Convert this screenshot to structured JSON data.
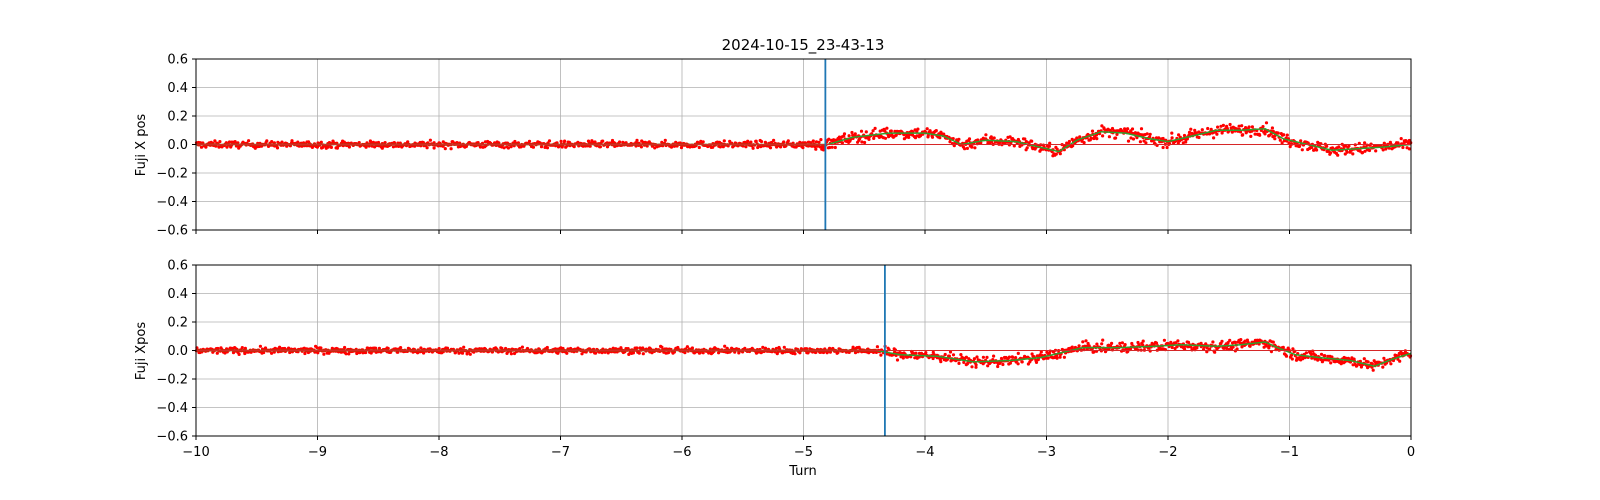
{
  "chart_data": [
    {
      "type": "scatter",
      "title": "2024-10-15_23-43-13",
      "xlabel": "",
      "ylabel": "Fuji X pos",
      "xlim": [
        -10,
        0
      ],
      "ylim": [
        -0.6,
        0.6
      ],
      "xticks": [
        -10,
        -9,
        -8,
        -7,
        -6,
        -5,
        -4,
        -3,
        -2,
        -1,
        0
      ],
      "yticks": [
        -0.6,
        -0.4,
        -0.2,
        0.0,
        0.2,
        0.4,
        0.6
      ],
      "xtick_labels_visible": false,
      "grid": true,
      "vline_x": -4.82,
      "hline_y": 0.0,
      "colors": {
        "points": "#ff0000",
        "smooth": "#2ca02c",
        "vline": "#1f77b4",
        "hline": "#d62728"
      },
      "trend": [
        [
          -10,
          0.0
        ],
        [
          -4.8,
          0.0
        ],
        [
          -4.6,
          0.05
        ],
        [
          -4.3,
          0.08
        ],
        [
          -4.0,
          0.08
        ],
        [
          -3.85,
          0.06
        ],
        [
          -3.7,
          0.0
        ],
        [
          -3.5,
          0.03
        ],
        [
          -3.25,
          0.02
        ],
        [
          -3.05,
          -0.02
        ],
        [
          -2.9,
          -0.05
        ],
        [
          -2.75,
          0.03
        ],
        [
          -2.55,
          0.09
        ],
        [
          -2.35,
          0.08
        ],
        [
          -2.15,
          0.04
        ],
        [
          -2.0,
          0.02
        ],
        [
          -1.8,
          0.06
        ],
        [
          -1.6,
          0.1
        ],
        [
          -1.4,
          0.1
        ],
        [
          -1.2,
          0.11
        ],
        [
          -1.05,
          0.04
        ],
        [
          -0.85,
          0.0
        ],
        [
          -0.65,
          -0.04
        ],
        [
          -0.45,
          -0.03
        ],
        [
          -0.25,
          -0.02
        ],
        [
          0,
          0.0
        ]
      ],
      "noise": 0.022
    },
    {
      "type": "scatter",
      "title": "",
      "xlabel": "Turn",
      "ylabel": "Fuji Xpos",
      "xlim": [
        -10,
        0
      ],
      "ylim": [
        -0.6,
        0.6
      ],
      "xticks": [
        -10,
        -9,
        -8,
        -7,
        -6,
        -5,
        -4,
        -3,
        -2,
        -1,
        0
      ],
      "yticks": [
        -0.6,
        -0.4,
        -0.2,
        0.0,
        0.2,
        0.4,
        0.6
      ],
      "xtick_labels_visible": true,
      "grid": true,
      "vline_x": -4.33,
      "hline_y": 0.0,
      "colors": {
        "points": "#ff0000",
        "smooth": "#2ca02c",
        "vline": "#1f77b4",
        "hline": "#d62728"
      },
      "trend": [
        [
          -10,
          0.0
        ],
        [
          -4.4,
          0.0
        ],
        [
          -4.2,
          -0.03
        ],
        [
          -3.9,
          -0.04
        ],
        [
          -3.6,
          -0.08
        ],
        [
          -3.3,
          -0.07
        ],
        [
          -3.05,
          -0.05
        ],
        [
          -2.9,
          -0.02
        ],
        [
          -2.7,
          0.02
        ],
        [
          -2.4,
          0.02
        ],
        [
          -2.1,
          0.03
        ],
        [
          -1.9,
          0.04
        ],
        [
          -1.6,
          0.03
        ],
        [
          -1.4,
          0.04
        ],
        [
          -1.2,
          0.06
        ],
        [
          -1.1,
          0.02
        ],
        [
          -0.95,
          -0.03
        ],
        [
          -0.75,
          -0.05
        ],
        [
          -0.5,
          -0.07
        ],
        [
          -0.3,
          -0.11
        ],
        [
          -0.15,
          -0.06
        ],
        [
          0,
          -0.02
        ]
      ],
      "noise": 0.02
    }
  ]
}
